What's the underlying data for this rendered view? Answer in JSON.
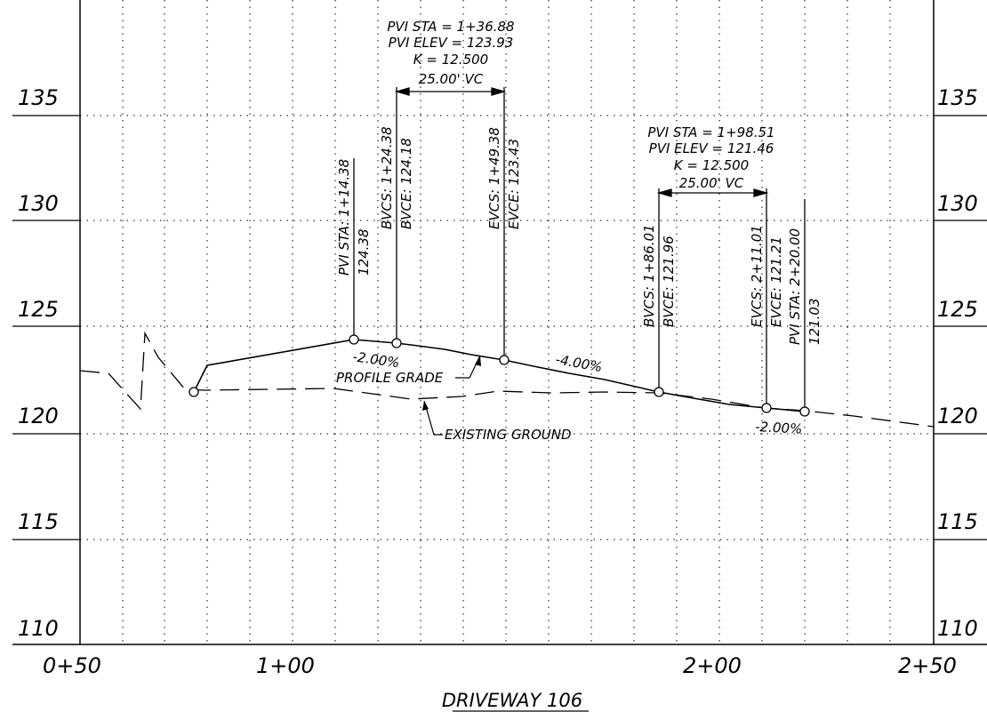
{
  "drawing_title": "DRIVEWAY 106",
  "elevations": [
    "135",
    "130",
    "125",
    "120",
    "115",
    "110"
  ],
  "stations": [
    "0+50",
    "1+00",
    "2+00",
    "2+50"
  ],
  "curve1": {
    "pvi_sta": "PVI STA = 1+36.88",
    "pvi_elev": "PVI ELEV = 123.93",
    "k": "K = 12.500",
    "vc": "25.00' VC",
    "bvcs": "BVCS: 1+24.38",
    "bvce": "BVCE: 124.18",
    "evcs": "EVCS: 1+49.38",
    "evce": "EVCE: 123.43"
  },
  "curve2": {
    "pvi_sta": "PVI STA = 1+98.51",
    "pvi_elev": "PVI ELEV = 121.46",
    "k": "K = 12.500",
    "vc": "25.00' VC",
    "bvcs": "BVCS: 1+86.01",
    "bvce": "BVCE: 121.96",
    "evcs": "EVCS: 2+11.01",
    "evce": "EVCE: 121.21"
  },
  "pvi_start": {
    "sta": "PVI STA: 1+14.38",
    "elev": "124.38"
  },
  "pvi_end": {
    "sta": "PVI STA: 2+20.00",
    "elev": "121.03"
  },
  "grades": [
    "-2.00%",
    "-4.00%",
    "-2.00%"
  ],
  "labels": {
    "profile_grade": "PROFILE GRADE",
    "existing_ground": "EXISTING GROUND"
  }
}
